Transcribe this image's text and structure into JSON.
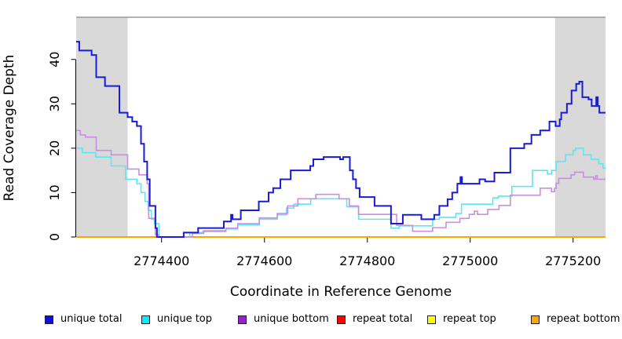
{
  "figure": {
    "background": "#FFFFFF"
  },
  "chart_data": {
    "type": "line",
    "step": "after",
    "title": "",
    "xlabel": "Coordinate in Reference Genome",
    "ylabel": "Read Coverage Depth",
    "xlim": [
      2774234,
      2775263
    ],
    "ylim": [
      0,
      49.5
    ],
    "x_ticks": [
      2774400,
      2774600,
      2774800,
      2775000,
      2775200
    ],
    "x_tick_labels": [
      "2774400",
      "2774600",
      "2774800",
      "2775000",
      "2775200"
    ],
    "y_ticks": [
      0,
      10,
      20,
      30,
      40
    ],
    "y_tick_labels": [
      "0",
      "10",
      "20",
      "30",
      "40"
    ],
    "grid": false,
    "legend_position": "bottom",
    "axis_color": "#000000",
    "top_border_color": "#9a9a9a",
    "background": "#ffffff",
    "highlight_regions": [
      {
        "x0": 2774234,
        "x1": 2774334,
        "color": "#d9d9d9"
      },
      {
        "x0": 2775165,
        "x1": 2775263,
        "color": "#d9d9d9"
      }
    ],
    "draw_order": [
      3,
      4,
      5,
      1,
      2,
      0
    ],
    "series": [
      {
        "name": "unique total",
        "color": "#1a1ad9",
        "swatch": "#0f0fe0",
        "width": 2,
        "points": [
          [
            2774234,
            44
          ],
          [
            2774240,
            42
          ],
          [
            2774264,
            41
          ],
          [
            2774273,
            36
          ],
          [
            2774290,
            34
          ],
          [
            2774318,
            28
          ],
          [
            2774334,
            27
          ],
          [
            2774343,
            26
          ],
          [
            2774352,
            25
          ],
          [
            2774360,
            21
          ],
          [
            2774366,
            17
          ],
          [
            2774372,
            13
          ],
          [
            2774377,
            7
          ],
          [
            2774388,
            2
          ],
          [
            2774391,
            0
          ],
          [
            2774443,
            1
          ],
          [
            2774471,
            2
          ],
          [
            2774521,
            3.5
          ],
          [
            2774535,
            5
          ],
          [
            2774538,
            4
          ],
          [
            2774554,
            6
          ],
          [
            2774589,
            8
          ],
          [
            2774608,
            10
          ],
          [
            2774617,
            11
          ],
          [
            2774631,
            13
          ],
          [
            2774651,
            15
          ],
          [
            2774689,
            16
          ],
          [
            2774695,
            17.5
          ],
          [
            2774715,
            18
          ],
          [
            2774747,
            17.5
          ],
          [
            2774753,
            18
          ],
          [
            2774766,
            15
          ],
          [
            2774772,
            13
          ],
          [
            2774778,
            11
          ],
          [
            2774785,
            9
          ],
          [
            2774814,
            7
          ],
          [
            2774846,
            3
          ],
          [
            2774869,
            5
          ],
          [
            2774905,
            4
          ],
          [
            2774930,
            5
          ],
          [
            2774940,
            7
          ],
          [
            2774956,
            8.5
          ],
          [
            2774965,
            10
          ],
          [
            2774975,
            12
          ],
          [
            2774981,
            13.5
          ],
          [
            2774984,
            12
          ],
          [
            2775018,
            13
          ],
          [
            2775029,
            12.5
          ],
          [
            2775047,
            14.5
          ],
          [
            2775078,
            20
          ],
          [
            2775105,
            21
          ],
          [
            2775119,
            23
          ],
          [
            2775136,
            24
          ],
          [
            2775154,
            26
          ],
          [
            2775166,
            25
          ],
          [
            2775174,
            26.5
          ],
          [
            2775177,
            28
          ],
          [
            2775188,
            30
          ],
          [
            2775197,
            33
          ],
          [
            2775206,
            34.5
          ],
          [
            2775212,
            35
          ],
          [
            2775218,
            31.5
          ],
          [
            2775230,
            31
          ],
          [
            2775236,
            29.5
          ],
          [
            2775245,
            31.5
          ],
          [
            2775248,
            29.5
          ],
          [
            2775251,
            28
          ]
        ]
      },
      {
        "name": "unique top",
        "color": "#5ce6f0",
        "swatch": "#00eeff",
        "width": 1.6,
        "points": [
          [
            2774234,
            20
          ],
          [
            2774246,
            19
          ],
          [
            2774272,
            18
          ],
          [
            2774302,
            16
          ],
          [
            2774330,
            13
          ],
          [
            2774352,
            12
          ],
          [
            2774360,
            10
          ],
          [
            2774368,
            8
          ],
          [
            2774374,
            6
          ],
          [
            2774380,
            4
          ],
          [
            2774386,
            3
          ],
          [
            2774395,
            0
          ],
          [
            2774455,
            1
          ],
          [
            2774480,
            1.2
          ],
          [
            2774525,
            1.8
          ],
          [
            2774548,
            2.7
          ],
          [
            2774590,
            4
          ],
          [
            2774625,
            5
          ],
          [
            2774643,
            6.5
          ],
          [
            2774657,
            7.4
          ],
          [
            2774690,
            8.6
          ],
          [
            2774760,
            6.8
          ],
          [
            2774783,
            4
          ],
          [
            2774846,
            2
          ],
          [
            2774862,
            2.5
          ],
          [
            2774927,
            4
          ],
          [
            2774940,
            4.4
          ],
          [
            2774972,
            5.3
          ],
          [
            2774983,
            7.4
          ],
          [
            2775044,
            8.8
          ],
          [
            2775055,
            9.2
          ],
          [
            2775081,
            11.4
          ],
          [
            2775121,
            15
          ],
          [
            2775150,
            14.2
          ],
          [
            2775158,
            15
          ],
          [
            2775167,
            17
          ],
          [
            2775185,
            18.5
          ],
          [
            2775200,
            19.5
          ],
          [
            2775205,
            20
          ],
          [
            2775220,
            18.5
          ],
          [
            2775235,
            17.5
          ],
          [
            2775250,
            16.5
          ],
          [
            2775258,
            15.5
          ]
        ]
      },
      {
        "name": "unique bottom",
        "color": "#cb8de1",
        "swatch": "#9a1fd0",
        "width": 1.6,
        "points": [
          [
            2774234,
            24
          ],
          [
            2774242,
            23
          ],
          [
            2774252,
            22.5
          ],
          [
            2774273,
            19.5
          ],
          [
            2774302,
            18.5
          ],
          [
            2774334,
            15.3
          ],
          [
            2774356,
            14
          ],
          [
            2774372,
            12
          ],
          [
            2774375,
            4.2
          ],
          [
            2774388,
            0.5
          ],
          [
            2774395,
            0
          ],
          [
            2774460,
            0.8
          ],
          [
            2774482,
            1.4
          ],
          [
            2774525,
            2
          ],
          [
            2774548,
            3
          ],
          [
            2774590,
            4.3
          ],
          [
            2774625,
            5.3
          ],
          [
            2774645,
            7
          ],
          [
            2774665,
            8.6
          ],
          [
            2774700,
            9.6
          ],
          [
            2774745,
            8.6
          ],
          [
            2774765,
            7
          ],
          [
            2774783,
            5.1
          ],
          [
            2774857,
            2.6
          ],
          [
            2774888,
            1.3
          ],
          [
            2774927,
            2.1
          ],
          [
            2774953,
            3.3
          ],
          [
            2774980,
            4.2
          ],
          [
            2774998,
            5.1
          ],
          [
            2775008,
            5.8
          ],
          [
            2775014,
            5.1
          ],
          [
            2775034,
            6.2
          ],
          [
            2775056,
            7.1
          ],
          [
            2775078,
            9.4
          ],
          [
            2775136,
            11
          ],
          [
            2775158,
            10.2
          ],
          [
            2775164,
            11
          ],
          [
            2775167,
            12.1
          ],
          [
            2775172,
            13.2
          ],
          [
            2775196,
            14
          ],
          [
            2775203,
            14.6
          ],
          [
            2775220,
            13.5
          ],
          [
            2775240,
            13
          ],
          [
            2775244,
            13.8
          ],
          [
            2775247,
            13
          ]
        ]
      },
      {
        "name": "repeat total",
        "color": "#ee0000",
        "swatch": "#ff0000",
        "width": 1.6,
        "points": [
          [
            2774234,
            0
          ]
        ]
      },
      {
        "name": "repeat top",
        "color": "#ffff00",
        "swatch": "#ffff00",
        "width": 1.6,
        "points": [
          [
            2774234,
            0
          ]
        ]
      },
      {
        "name": "repeat bottom",
        "color": "#ffa500",
        "swatch": "#ffa500",
        "width": 2,
        "points": [
          [
            2774234,
            0
          ]
        ]
      }
    ]
  }
}
